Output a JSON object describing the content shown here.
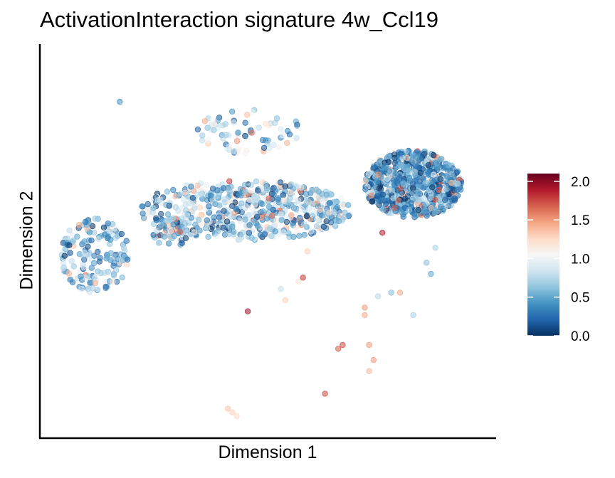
{
  "chart_data": {
    "type": "scatter",
    "title": "ActivationInteraction signature 4w_Ccl19",
    "xlabel": "Dimension 1",
    "ylabel": "Dimension 2",
    "x_ticks_shown": false,
    "y_ticks_shown": false,
    "grid": false,
    "point_opacity": 0.55,
    "color_scale": {
      "name": "RdBu reversed",
      "min": 0.0,
      "max": 2.1,
      "ticks": [
        {
          "value": 0.0,
          "label": "0.0"
        },
        {
          "value": 0.5,
          "label": "0.5"
        },
        {
          "value": 1.0,
          "label": "1.0"
        },
        {
          "value": 1.5,
          "label": "1.5"
        },
        {
          "value": 2.0,
          "label": "2.0"
        }
      ],
      "stops": [
        "#053061",
        "#2166ac",
        "#4393c3",
        "#92c5de",
        "#d1e5f0",
        "#f7f7f7",
        "#fddbc7",
        "#f4a582",
        "#d6604d",
        "#b2182b",
        "#67001f"
      ]
    },
    "legend_position": "right",
    "clusters_note_values": "coordinates in plot units (x 0-100 left to right, y 0-100 bottom to top)",
    "clusters": [
      {
        "cx": 11,
        "cy": 47,
        "rx": 8,
        "ry": 10,
        "n": 170,
        "mean": 0.55,
        "sd": 0.3
      },
      {
        "cx": 45,
        "cy": 59,
        "rx": 24,
        "ry": 8,
        "n": 600,
        "mean": 0.62,
        "sd": 0.32
      },
      {
        "cx": 83,
        "cy": 66,
        "rx": 11,
        "ry": 9,
        "n": 650,
        "mean": 0.38,
        "sd": 0.25
      },
      {
        "cx": 46,
        "cy": 80,
        "rx": 12,
        "ry": 6,
        "n": 80,
        "mean": 0.7,
        "sd": 0.32
      },
      {
        "cx": 28,
        "cy": 53,
        "rx": 4,
        "ry": 4,
        "n": 40,
        "mean": 0.55,
        "sd": 0.3
      }
    ],
    "outliers": [
      {
        "x": 16.5,
        "y": 88,
        "v": 0.4
      },
      {
        "x": 45.5,
        "y": 32,
        "v": 1.95
      },
      {
        "x": 58,
        "y": 41,
        "v": 1.8
      },
      {
        "x": 53,
        "y": 38,
        "v": 0.8
      },
      {
        "x": 54,
        "y": 35,
        "v": 1.3
      },
      {
        "x": 57,
        "y": 40,
        "v": 1.2
      },
      {
        "x": 72,
        "y": 33,
        "v": 1.5
      },
      {
        "x": 72,
        "y": 31,
        "v": 1.45
      },
      {
        "x": 75,
        "y": 36,
        "v": 0.75
      },
      {
        "x": 78,
        "y": 37,
        "v": 0.6
      },
      {
        "x": 80,
        "y": 37,
        "v": 1.45
      },
      {
        "x": 83,
        "y": 31,
        "v": 0.7
      },
      {
        "x": 66,
        "y": 22,
        "v": 1.7
      },
      {
        "x": 67,
        "y": 23,
        "v": 1.75
      },
      {
        "x": 73,
        "y": 23,
        "v": 1.5
      },
      {
        "x": 74,
        "y": 19,
        "v": 1.5
      },
      {
        "x": 73,
        "y": 16,
        "v": 1.4
      },
      {
        "x": 63,
        "y": 10,
        "v": 1.75
      },
      {
        "x": 41,
        "y": 6,
        "v": 1.35
      },
      {
        "x": 42,
        "y": 5,
        "v": 1.3
      },
      {
        "x": 43,
        "y": 4,
        "v": 1.25
      },
      {
        "x": 59,
        "y": 48,
        "v": 1.3
      },
      {
        "x": 76,
        "y": 53,
        "v": 1.9
      },
      {
        "x": 86,
        "y": 45,
        "v": 0.6
      },
      {
        "x": 87,
        "y": 42,
        "v": 0.5
      },
      {
        "x": 88,
        "y": 49,
        "v": 0.7
      }
    ]
  }
}
